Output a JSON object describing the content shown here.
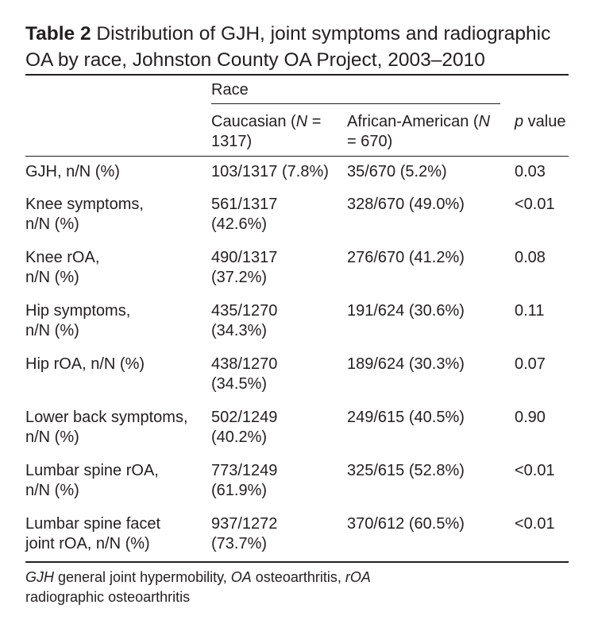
{
  "title": {
    "label": "Table 2",
    "text": "Distribution of GJH, joint symptoms and radiographic OA by race, Johnston County OA Project, 2003–2010"
  },
  "header": {
    "group": "Race",
    "col1_prefix": "Caucasian (",
    "col1_n": "N",
    "col1_suffix": " =\n1317)",
    "col2_prefix": "African-American (",
    "col2_n": "N",
    "col2_suffix": "\n= 670)",
    "col3_p": "p",
    "col3_suffix": " value"
  },
  "rows": [
    {
      "label": "GJH, n/N (%)",
      "caucasian": "103/1317 (7.8%)",
      "african_american": "35/670 (5.2%)",
      "p_value": "0.03"
    },
    {
      "label": "Knee symptoms,\nn/N (%)",
      "caucasian": "561/1317\n(42.6%)",
      "african_american": "328/670 (49.0%)",
      "p_value": "<0.01"
    },
    {
      "label": "Knee rOA,\nn/N (%)",
      "caucasian": "490/1317\n(37.2%)",
      "african_american": "276/670 (41.2%)",
      "p_value": "0.08"
    },
    {
      "label": "Hip symptoms,\nn/N (%)",
      "caucasian": "435/1270\n(34.3%)",
      "african_american": "191/624 (30.6%)",
      "p_value": "0.11"
    },
    {
      "label": "Hip rOA, n/N (%)",
      "caucasian": "438/1270\n(34.5%)",
      "african_american": "189/624 (30.3%)",
      "p_value": "0.07"
    },
    {
      "label": "Lower back symptoms,\nn/N (%)",
      "caucasian": "502/1249\n(40.2%)",
      "african_american": "249/615 (40.5%)",
      "p_value": "0.90"
    },
    {
      "label": "Lumbar spine rOA,\nn/N (%)",
      "caucasian": "773/1249\n(61.9%)",
      "african_american": "325/615 (52.8%)",
      "p_value": "<0.01"
    },
    {
      "label": "Lumbar spine facet\njoint rOA, n/N (%)",
      "caucasian": "937/1272\n(73.7%)",
      "african_american": "370/612 (60.5%)",
      "p_value": "<0.01"
    }
  ],
  "footnote": {
    "abbr1": "GJH",
    "def1": " general joint hypermobility, ",
    "abbr2": "OA",
    "def2": " osteoarthritis, ",
    "abbr3": "rOA",
    "def3": "\nradiographic osteoarthritis"
  }
}
